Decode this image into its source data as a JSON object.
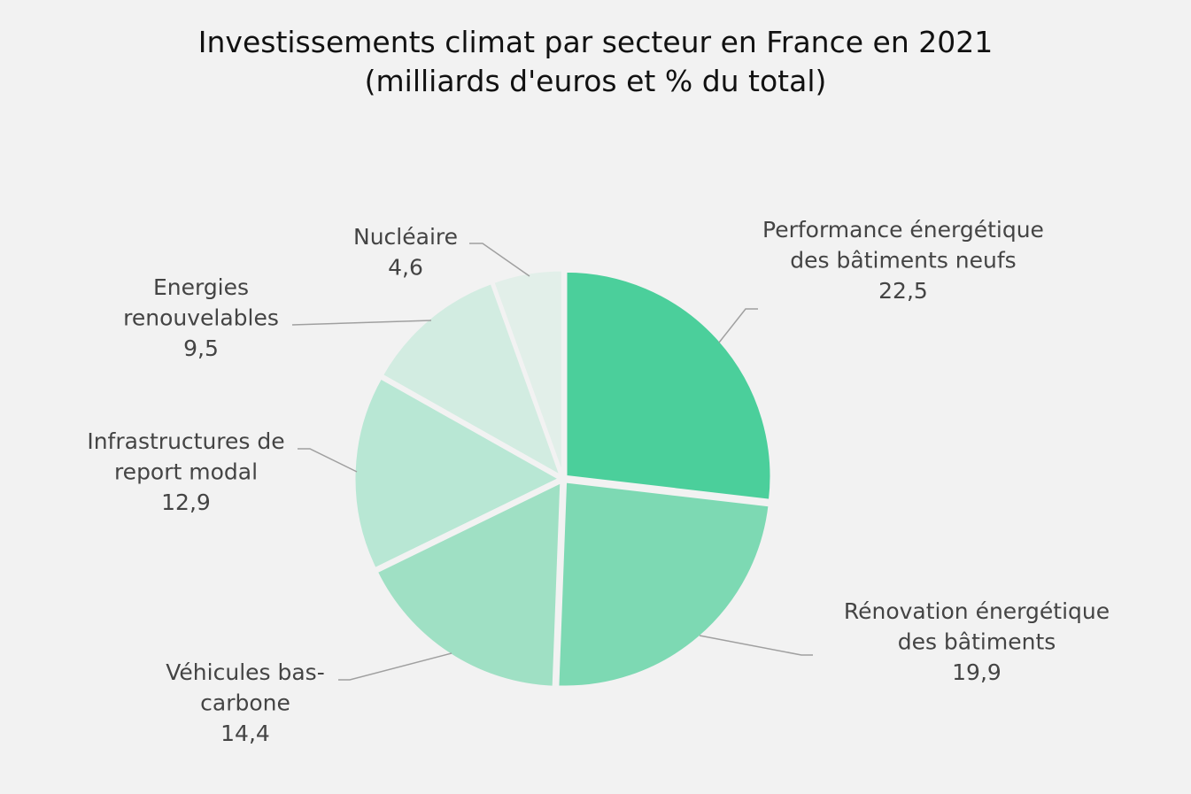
{
  "chart_data": {
    "type": "pie",
    "title": [
      "Investissements climat par secteur en France en 2021",
      "(milliards d'euros et % du total)"
    ],
    "slices": [
      {
        "label": [
          "Performance énergétique",
          "des bâtiments neufs"
        ],
        "value": 22.5,
        "display": "22,5",
        "color": "#4bcf9b"
      },
      {
        "label": [
          "Rénovation énergétique",
          "des bâtiments"
        ],
        "value": 19.9,
        "display": "19,9",
        "color": "#7dd9b3"
      },
      {
        "label": [
          "Véhicules bas-",
          "carbone"
        ],
        "value": 14.4,
        "display": "14,4",
        "color": "#9fe0c4"
      },
      {
        "label": [
          "Infrastructures de",
          "report modal"
        ],
        "value": 12.9,
        "display": "12,9",
        "color": "#b8e7d4"
      },
      {
        "label": [
          "Energies",
          "renouvelables"
        ],
        "value": 9.5,
        "display": "9,5",
        "color": "#d2ece1"
      },
      {
        "label": [
          "Nucléaire"
        ],
        "value": 4.6,
        "display": "4,6",
        "color": "#e2efe9"
      }
    ],
    "start": "12 o'clock",
    "direction": "clockwise",
    "legend": "none (outside labels with leader lines)",
    "background": "#f2f2f2"
  }
}
